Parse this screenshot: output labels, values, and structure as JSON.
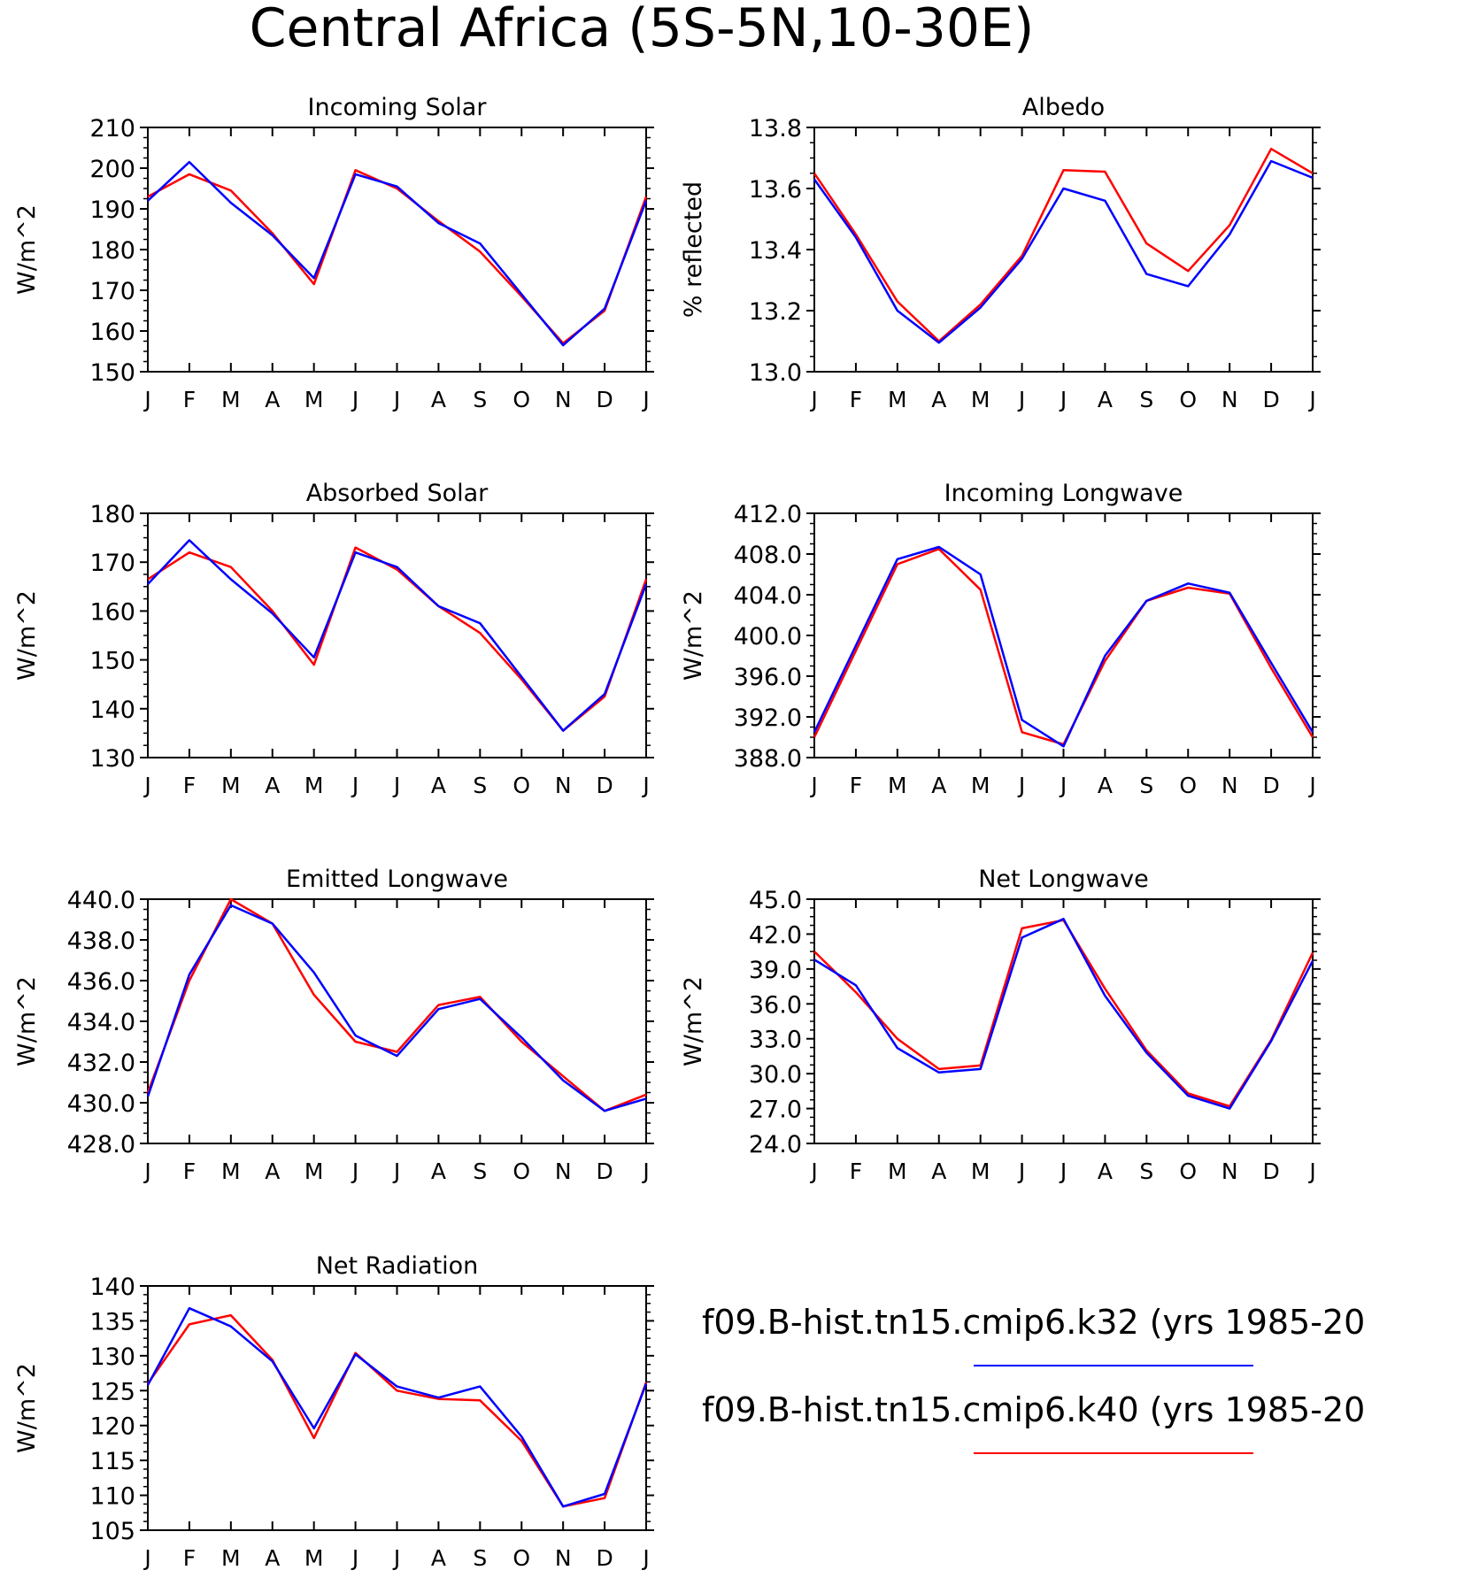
{
  "figure": {
    "title": "Central Africa (5S-5N,10-30E)",
    "month_labels": [
      "J",
      "F",
      "M",
      "A",
      "M",
      "J",
      "J",
      "A",
      "S",
      "O",
      "N",
      "D",
      "J"
    ]
  },
  "legend": [
    {
      "label": "f09.B-hist.tn15.cmip6.k32 (yrs 1985-20",
      "color": "#0000ff"
    },
    {
      "label": "f09.B-hist.tn15.cmip6.k40 (yrs 1985-20",
      "color": "#ff0000"
    }
  ],
  "chart_data": [
    {
      "type": "line",
      "title": "Incoming Solar",
      "ylabel": "W/m^2",
      "ylim": [
        150,
        210
      ],
      "yticks": [
        150,
        160,
        170,
        180,
        190,
        200,
        210
      ],
      "decimals": 0,
      "x": [
        "J",
        "F",
        "M",
        "A",
        "M",
        "J",
        "J",
        "A",
        "S",
        "O",
        "N",
        "D",
        "J"
      ],
      "series": [
        {
          "color": "#ff0000",
          "values": [
            193,
            198.5,
            194.5,
            184,
            171.5,
            199.5,
            195,
            187,
            179.5,
            168.5,
            157,
            165,
            193
          ]
        },
        {
          "color": "#0000ff",
          "values": [
            192,
            201.5,
            191.5,
            183.5,
            173,
            198.5,
            195.5,
            186.5,
            181.5,
            169,
            156.5,
            165.5,
            192
          ]
        }
      ]
    },
    {
      "type": "line",
      "title": "Albedo",
      "ylabel": "% reflected",
      "ylim": [
        13.0,
        13.8
      ],
      "yticks": [
        13.0,
        13.2,
        13.4,
        13.6,
        13.8
      ],
      "decimals": 1,
      "x": [
        "J",
        "F",
        "M",
        "A",
        "M",
        "J",
        "J",
        "A",
        "S",
        "O",
        "N",
        "D",
        "J"
      ],
      "series": [
        {
          "color": "#ff0000",
          "values": [
            13.65,
            13.45,
            13.23,
            13.1,
            13.22,
            13.38,
            13.66,
            13.655,
            13.42,
            13.33,
            13.48,
            13.73,
            13.65
          ]
        },
        {
          "color": "#0000ff",
          "values": [
            13.63,
            13.44,
            13.2,
            13.095,
            13.21,
            13.37,
            13.6,
            13.56,
            13.32,
            13.28,
            13.45,
            13.69,
            13.635
          ]
        }
      ]
    },
    {
      "type": "line",
      "title": "Absorbed Solar",
      "ylabel": "W/m^2",
      "ylim": [
        130,
        180
      ],
      "yticks": [
        130,
        140,
        150,
        160,
        170,
        180
      ],
      "decimals": 0,
      "x": [
        "J",
        "F",
        "M",
        "A",
        "M",
        "J",
        "J",
        "A",
        "S",
        "O",
        "N",
        "D",
        "J"
      ],
      "series": [
        {
          "color": "#ff0000",
          "values": [
            166.5,
            172,
            169,
            160,
            149,
            173,
            168.5,
            161,
            155.5,
            146,
            135.5,
            142.5,
            166.5
          ]
        },
        {
          "color": "#0000ff",
          "values": [
            165.5,
            174.5,
            166.5,
            159.5,
            150.5,
            172,
            169,
            161,
            157.5,
            146.5,
            135.5,
            143,
            165.5
          ]
        }
      ]
    },
    {
      "type": "line",
      "title": "Incoming Longwave",
      "ylabel": "W/m^2",
      "ylim": [
        388,
        412
      ],
      "yticks": [
        388,
        392,
        396,
        400,
        404,
        408,
        412
      ],
      "decimals": 1,
      "x": [
        "J",
        "F",
        "M",
        "A",
        "M",
        "J",
        "J",
        "A",
        "S",
        "O",
        "N",
        "D",
        "J"
      ],
      "series": [
        {
          "color": "#ff0000",
          "values": [
            390,
            398.5,
            407,
            408.5,
            404.5,
            390.5,
            389.3,
            397.5,
            403.4,
            404.7,
            404.1,
            396.8,
            390
          ]
        },
        {
          "color": "#0000ff",
          "values": [
            390.5,
            399,
            407.5,
            408.7,
            406,
            391.7,
            389.1,
            398,
            403.4,
            405.1,
            404.2,
            397.3,
            390.5
          ]
        }
      ]
    },
    {
      "type": "line",
      "title": "Emitted Longwave",
      "ylabel": "W/m^2",
      "ylim": [
        428,
        440
      ],
      "yticks": [
        428,
        430,
        432,
        434,
        436,
        438,
        440
      ],
      "decimals": 1,
      "x": [
        "J",
        "F",
        "M",
        "A",
        "M",
        "J",
        "J",
        "A",
        "S",
        "O",
        "N",
        "D",
        "J"
      ],
      "series": [
        {
          "color": "#ff0000",
          "values": [
            430.5,
            436,
            440,
            438.8,
            435.3,
            433,
            432.5,
            434.8,
            435.2,
            433,
            431.3,
            429.6,
            430.4
          ]
        },
        {
          "color": "#0000ff",
          "values": [
            430.3,
            436.3,
            439.7,
            438.8,
            436.4,
            433.3,
            432.3,
            434.6,
            435.1,
            433.2,
            431.1,
            429.6,
            430.2
          ]
        }
      ]
    },
    {
      "type": "line",
      "title": "Net Longwave",
      "ylabel": "W/m^2",
      "ylim": [
        24,
        45
      ],
      "yticks": [
        24,
        27,
        30,
        33,
        36,
        39,
        42,
        45
      ],
      "decimals": 1,
      "x": [
        "J",
        "F",
        "M",
        "A",
        "M",
        "J",
        "J",
        "A",
        "S",
        "O",
        "N",
        "D",
        "J"
      ],
      "series": [
        {
          "color": "#ff0000",
          "values": [
            40.5,
            37,
            33,
            30.4,
            30.7,
            42.5,
            43.2,
            37.3,
            32,
            28.3,
            27.2,
            32.9,
            40.4
          ]
        },
        {
          "color": "#0000ff",
          "values": [
            39.8,
            37.6,
            32.2,
            30.1,
            30.4,
            41.7,
            43.3,
            36.7,
            31.8,
            28.1,
            27,
            32.8,
            39.7
          ]
        }
      ]
    },
    {
      "type": "line",
      "title": "Net Radiation",
      "ylabel": "W/m^2",
      "ylim": [
        105,
        140
      ],
      "yticks": [
        105,
        110,
        115,
        120,
        125,
        130,
        135,
        140
      ],
      "decimals": 0,
      "x": [
        "J",
        "F",
        "M",
        "A",
        "M",
        "J",
        "J",
        "A",
        "S",
        "O",
        "N",
        "D",
        "J"
      ],
      "series": [
        {
          "color": "#ff0000",
          "values": [
            126,
            134.5,
            135.8,
            129.4,
            118.2,
            130.4,
            125,
            123.8,
            123.6,
            117.8,
            108.4,
            109.6,
            126.2
          ]
        },
        {
          "color": "#0000ff",
          "values": [
            125.8,
            136.8,
            134.2,
            129.2,
            119.6,
            130.2,
            125.6,
            124,
            125.6,
            118.4,
            108.4,
            110.2,
            126
          ]
        }
      ]
    }
  ]
}
